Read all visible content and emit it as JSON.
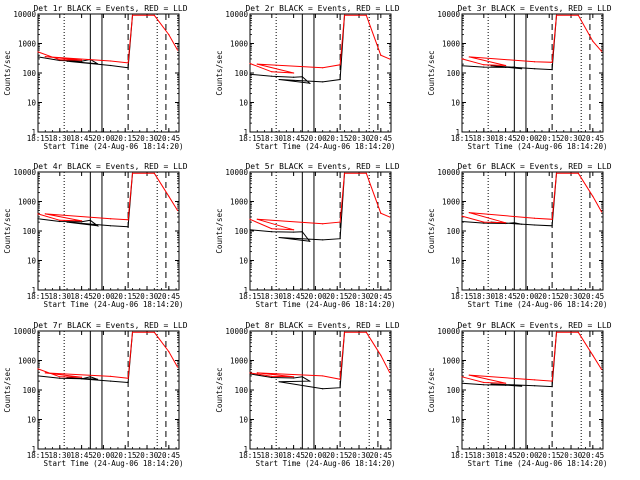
{
  "colors": {
    "events": "#000000",
    "lld": "#ff0000",
    "axis": "#000000",
    "background": "#ffffff"
  },
  "chart_data": {
    "type": "line",
    "layout": "3x3 grid",
    "y_scale": "log",
    "ylim": [
      1,
      10000
    ],
    "y_ticks": [
      1,
      10,
      100,
      1000,
      10000
    ],
    "y_tick_labels": [
      "1",
      "10",
      "100",
      "1000",
      "10000"
    ],
    "xlim": [
      "18:15",
      "20:52"
    ],
    "x_tick_labels": [
      "18:15",
      "18:30",
      "18:45",
      "20:00",
      "20:15",
      "20:30",
      "20:45"
    ],
    "xlabel": "Start Time (24-Aug-06 18:14:20)",
    "ylabel": "Counts/sec",
    "vertical_lines": {
      "dotted": [
        "18:33",
        "20:37"
      ],
      "solid": [
        "18:51",
        "19:59"
      ],
      "dashed": [
        "20:17",
        "20:43"
      ]
    },
    "panels": [
      {
        "title": "Det 1r BLACK = Events, RED = LLD",
        "series": [
          {
            "name": "Events",
            "color": "#000000",
            "x": [
              "18:15",
              "18:30",
              "18:45",
              "18:51",
              "18:56",
              "19:35",
              "20:05",
              "20:17",
              "20:20"
            ],
            "values": [
              350,
              265,
              250,
              290,
              205,
              250,
              180,
              150,
              9000
            ]
          },
          {
            "name": "LLD",
            "color": "#ff0000",
            "x": [
              "18:15",
              "18:30",
              "18:45",
              "19:20",
              "20:05",
              "20:17",
              "20:20",
              "20:35",
              "20:45",
              "20:51"
            ],
            "values": [
              520,
              280,
              270,
              360,
              255,
              220,
              9000,
              9000,
              2000,
              600
            ]
          }
        ]
      },
      {
        "title": "Det 2r BLACK = Events, RED = LLD",
        "series": [
          {
            "name": "Events",
            "color": "#000000",
            "x": [
              "18:15",
              "18:30",
              "18:45",
              "18:51",
              "18:56",
              "19:35",
              "20:05",
              "20:17",
              "20:20"
            ],
            "values": [
              90,
              78,
              72,
              75,
              45,
              60,
              50,
              60,
              9000
            ]
          },
          {
            "name": "LLD",
            "color": "#ff0000",
            "x": [
              "18:15",
              "18:30",
              "18:45",
              "19:20",
              "20:05",
              "20:17",
              "20:20",
              "20:35",
              "20:45",
              "20:51"
            ],
            "values": [
              210,
              110,
              100,
              200,
              150,
              190,
              9000,
              9000,
              400,
              300
            ]
          }
        ]
      },
      {
        "title": "Det 3r BLACK = Events, RED = LLD",
        "series": [
          {
            "name": "Events",
            "color": "#000000",
            "x": [
              "18:15",
              "18:30",
              "18:45",
              "18:51",
              "18:56",
              "19:35",
              "20:05",
              "20:17",
              "20:20"
            ],
            "values": [
              175,
              158,
              155,
              160,
              140,
              175,
              140,
              130,
              9000
            ]
          },
          {
            "name": "LLD",
            "color": "#ff0000",
            "x": [
              "18:15",
              "18:30",
              "18:45",
              "19:20",
              "20:05",
              "20:17",
              "20:20",
              "20:35",
              "20:45",
              "20:51"
            ],
            "values": [
              300,
              190,
              180,
              350,
              240,
              230,
              9000,
              9000,
              1200,
              550
            ]
          }
        ]
      },
      {
        "title": "Det 4r BLACK = Events, RED = LLD",
        "series": [
          {
            "name": "Events",
            "color": "#000000",
            "x": [
              "18:15",
              "18:30",
              "18:45",
              "18:51",
              "18:56",
              "19:35",
              "20:05",
              "20:17",
              "20:20"
            ],
            "values": [
              260,
              210,
              205,
              230,
              150,
              200,
              150,
              140,
              9000
            ]
          },
          {
            "name": "LLD",
            "color": "#ff0000",
            "x": [
              "18:15",
              "18:30",
              "18:45",
              "19:20",
              "20:05",
              "20:17",
              "20:20",
              "20:35",
              "20:45",
              "20:51"
            ],
            "values": [
              380,
              230,
              220,
              380,
              260,
              240,
              9000,
              9000,
              1500,
              500
            ]
          }
        ]
      },
      {
        "title": "Det 5r BLACK = Events, RED = LLD",
        "series": [
          {
            "name": "Events",
            "color": "#000000",
            "x": [
              "18:15",
              "18:30",
              "18:45",
              "18:51",
              "18:56",
              "19:35",
              "20:05",
              "20:17",
              "20:20"
            ],
            "values": [
              110,
              95,
              92,
              95,
              45,
              60,
              50,
              55,
              9000
            ]
          },
          {
            "name": "LLD",
            "color": "#ff0000",
            "x": [
              "18:15",
              "18:30",
              "18:45",
              "19:20",
              "20:05",
              "20:17",
              "20:20",
              "20:35",
              "20:45",
              "20:51"
            ],
            "values": [
              250,
              120,
              110,
              250,
              175,
              200,
              9000,
              9000,
              400,
              300
            ]
          }
        ]
      },
      {
        "title": "Det 6r BLACK = Events, RED = LLD",
        "series": [
          {
            "name": "Events",
            "color": "#000000",
            "x": [
              "18:15",
              "18:30",
              "18:45",
              "18:51",
              "18:56",
              "19:35",
              "20:05",
              "20:17",
              "20:20"
            ],
            "values": [
              210,
              185,
              180,
              190,
              170,
              200,
              160,
              150,
              9000
            ]
          },
          {
            "name": "LLD",
            "color": "#ff0000",
            "x": [
              "18:15",
              "18:30",
              "18:45",
              "19:20",
              "20:05",
              "20:17",
              "20:20",
              "20:35",
              "20:45",
              "20:51"
            ],
            "values": [
              320,
              200,
              190,
              420,
              270,
              250,
              9000,
              9000,
              1500,
              450
            ]
          }
        ]
      },
      {
        "title": "Det 7r BLACK = Events, RED = LLD",
        "series": [
          {
            "name": "Events",
            "color": "#000000",
            "x": [
              "18:15",
              "18:30",
              "18:45",
              "18:51",
              "18:56",
              "19:35",
              "20:05",
              "20:17",
              "20:20"
            ],
            "values": [
              300,
              250,
              240,
              280,
              230,
              260,
              200,
              180,
              9000
            ]
          },
          {
            "name": "LLD",
            "color": "#ff0000",
            "x": [
              "18:15",
              "18:30",
              "18:45",
              "19:20",
              "20:05",
              "20:17",
              "20:20",
              "20:35",
              "20:45",
              "20:51"
            ],
            "values": [
              520,
              280,
              270,
              380,
              290,
              250,
              9000,
              9000,
              2000,
              600
            ]
          }
        ]
      },
      {
        "title": "Det 8r BLACK = Events, RED = LLD",
        "series": [
          {
            "name": "Events",
            "color": "#000000",
            "x": [
              "18:15",
              "18:30",
              "18:45",
              "18:51",
              "18:56",
              "19:35",
              "20:05",
              "20:17",
              "20:20"
            ],
            "values": [
              350,
              265,
              255,
              280,
              200,
              190,
              110,
              120,
              9000
            ]
          },
          {
            "name": "LLD",
            "color": "#ff0000",
            "x": [
              "18:15",
              "18:30",
              "18:45",
              "19:20",
              "20:05",
              "20:17",
              "20:20",
              "20:35",
              "20:45",
              "20:51"
            ],
            "values": [
              380,
              290,
              280,
              380,
              300,
              230,
              9000,
              9000,
              1500,
              400
            ]
          }
        ]
      },
      {
        "title": "Det 9r BLACK = Events, RED = LLD",
        "series": [
          {
            "name": "Events",
            "color": "#000000",
            "x": [
              "18:15",
              "18:30",
              "18:45",
              "18:51",
              "18:56",
              "19:35",
              "20:05",
              "20:17",
              "20:20"
            ],
            "values": [
              170,
              150,
              145,
              150,
              135,
              160,
              140,
              130,
              9000
            ]
          },
          {
            "name": "LLD",
            "color": "#ff0000",
            "x": [
              "18:15",
              "18:30",
              "18:45",
              "19:20",
              "20:05",
              "20:17",
              "20:20",
              "20:35",
              "20:45",
              "20:51"
            ],
            "values": [
              280,
              180,
              170,
              320,
              220,
              200,
              9000,
              9000,
              1500,
              500
            ]
          }
        ]
      }
    ]
  }
}
